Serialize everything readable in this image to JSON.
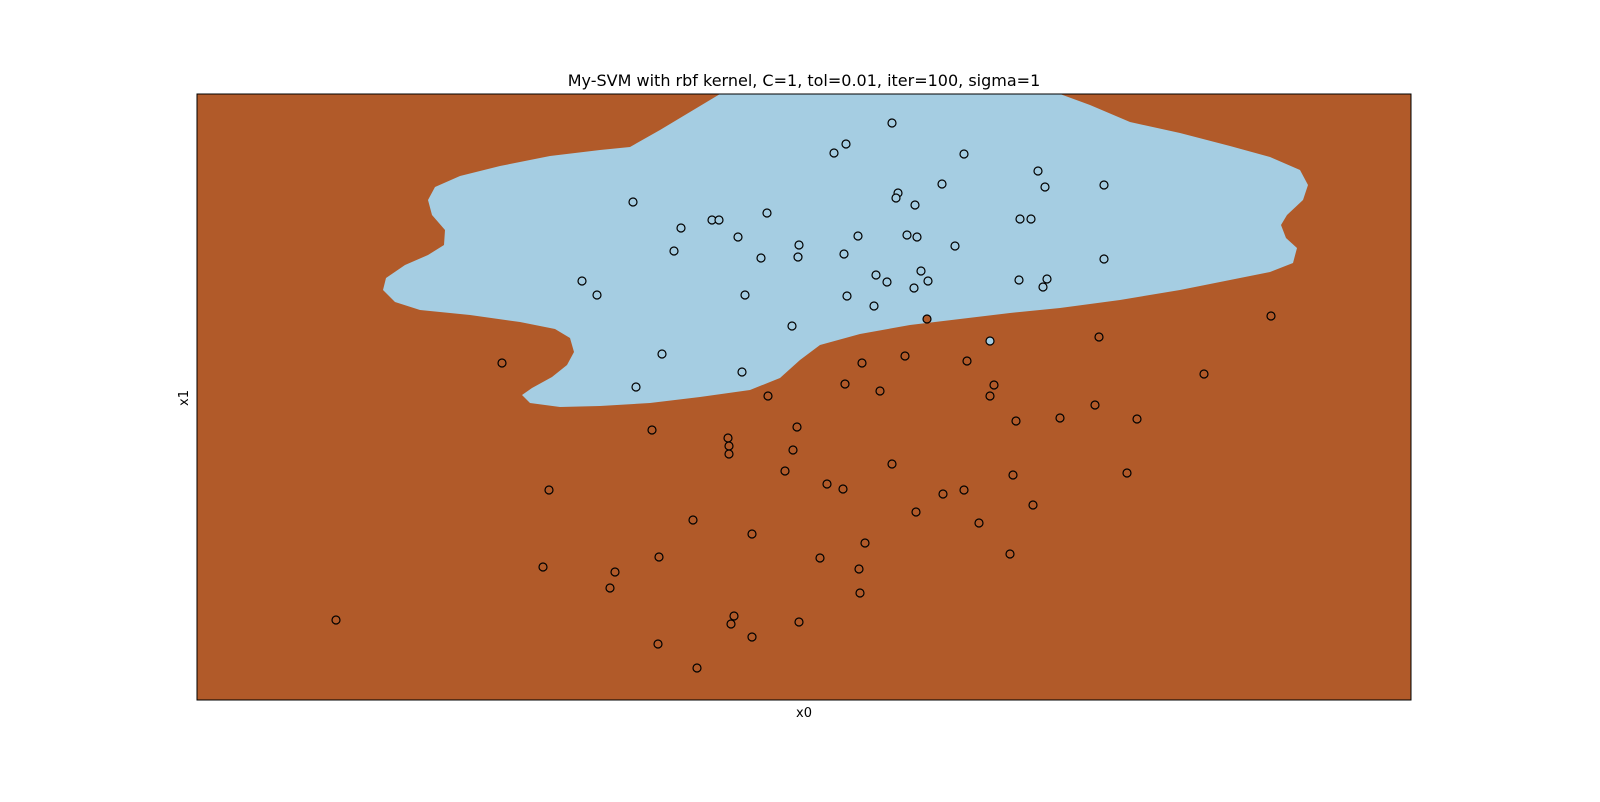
{
  "chart_data": {
    "type": "scatter",
    "title": "My-SVM with rbf kernel, C=1, tol=0.01, iter=100, sigma=1",
    "xlabel": "x0",
    "ylabel": "x1",
    "xticks": [],
    "yticks": [],
    "grid": false,
    "legend": "none",
    "background_region_color": "#b15a29",
    "decision_region_color": "#a5cde2",
    "point_fill_brown": "#b15a29",
    "point_fill_light": "#a5cde2",
    "point_edge_color": "#000000",
    "ranges": {
      "x": [
        0,
        1600
      ],
      "y": [
        -802,
        0
      ]
    },
    "decision_boundary": [
      [
        720,
        94
      ],
      [
        1060,
        94
      ],
      [
        1090,
        105
      ],
      [
        1130,
        122
      ],
      [
        1180,
        133
      ],
      [
        1230,
        146
      ],
      [
        1270,
        157
      ],
      [
        1300,
        170
      ],
      [
        1308,
        185
      ],
      [
        1303,
        200
      ],
      [
        1287,
        215
      ],
      [
        1281,
        225
      ],
      [
        1286,
        238
      ],
      [
        1297,
        248
      ],
      [
        1293,
        263
      ],
      [
        1270,
        272
      ],
      [
        1230,
        280
      ],
      [
        1180,
        290
      ],
      [
        1120,
        300
      ],
      [
        1060,
        308
      ],
      [
        1010,
        313
      ],
      [
        960,
        319
      ],
      [
        910,
        325
      ],
      [
        860,
        334
      ],
      [
        820,
        345
      ],
      [
        800,
        360
      ],
      [
        780,
        378
      ],
      [
        750,
        390
      ],
      [
        700,
        397
      ],
      [
        650,
        403
      ],
      [
        600,
        406
      ],
      [
        560,
        407
      ],
      [
        530,
        403
      ],
      [
        522,
        395
      ],
      [
        532,
        388
      ],
      [
        552,
        377
      ],
      [
        567,
        365
      ],
      [
        574,
        352
      ],
      [
        570,
        338
      ],
      [
        555,
        329
      ],
      [
        520,
        322
      ],
      [
        470,
        315
      ],
      [
        420,
        310
      ],
      [
        395,
        302
      ],
      [
        383,
        290
      ],
      [
        386,
        278
      ],
      [
        405,
        265
      ],
      [
        428,
        255
      ],
      [
        444,
        245
      ],
      [
        445,
        230
      ],
      [
        432,
        215
      ],
      [
        428,
        200
      ],
      [
        435,
        187
      ],
      [
        460,
        176
      ],
      [
        500,
        166
      ],
      [
        550,
        156
      ],
      [
        600,
        150
      ],
      [
        630,
        147
      ],
      [
        660,
        130
      ],
      [
        690,
        112
      ],
      [
        720,
        94
      ]
    ],
    "points_light": [
      [
        892,
        123
      ],
      [
        846,
        144
      ],
      [
        834,
        153
      ],
      [
        964,
        154
      ],
      [
        1038,
        171
      ],
      [
        942,
        184
      ],
      [
        1104,
        185
      ],
      [
        1045,
        187
      ],
      [
        898,
        193
      ],
      [
        896,
        198
      ],
      [
        633,
        202
      ],
      [
        915,
        205
      ],
      [
        767,
        213
      ],
      [
        712,
        220
      ],
      [
        719,
        220
      ],
      [
        1020,
        219
      ],
      [
        1031,
        219
      ],
      [
        681,
        228
      ],
      [
        738,
        237
      ],
      [
        858,
        236
      ],
      [
        907,
        235
      ],
      [
        917,
        237
      ],
      [
        799,
        245
      ],
      [
        955,
        246
      ],
      [
        674,
        251
      ],
      [
        761,
        258
      ],
      [
        798,
        257
      ],
      [
        844,
        254
      ],
      [
        1104,
        259
      ],
      [
        876,
        275
      ],
      [
        921,
        271
      ],
      [
        887,
        282
      ],
      [
        928,
        281
      ],
      [
        582,
        281
      ],
      [
        1019,
        280
      ],
      [
        1047,
        279
      ],
      [
        914,
        288
      ],
      [
        1043,
        287
      ],
      [
        597,
        295
      ],
      [
        745,
        295
      ],
      [
        847,
        296
      ],
      [
        874,
        306
      ],
      [
        792,
        326
      ],
      [
        662,
        354
      ],
      [
        742,
        372
      ],
      [
        636,
        387
      ],
      [
        990,
        341
      ]
    ],
    "points_brown": [
      [
        927,
        319
      ],
      [
        1271,
        316
      ],
      [
        1099,
        337
      ],
      [
        502,
        363
      ],
      [
        905,
        356
      ],
      [
        862,
        363
      ],
      [
        967,
        361
      ],
      [
        1204,
        374
      ],
      [
        845,
        384
      ],
      [
        994,
        385
      ],
      [
        880,
        391
      ],
      [
        768,
        396
      ],
      [
        990,
        396
      ],
      [
        1095,
        405
      ],
      [
        1060,
        418
      ],
      [
        1137,
        419
      ],
      [
        1016,
        421
      ],
      [
        652,
        430
      ],
      [
        797,
        427
      ],
      [
        728,
        438
      ],
      [
        729,
        446
      ],
      [
        793,
        450
      ],
      [
        729,
        454
      ],
      [
        892,
        464
      ],
      [
        785,
        471
      ],
      [
        1127,
        473
      ],
      [
        1013,
        475
      ],
      [
        827,
        484
      ],
      [
        549,
        490
      ],
      [
        843,
        489
      ],
      [
        964,
        490
      ],
      [
        943,
        494
      ],
      [
        1033,
        505
      ],
      [
        916,
        512
      ],
      [
        693,
        520
      ],
      [
        979,
        523
      ],
      [
        752,
        534
      ],
      [
        865,
        543
      ],
      [
        1010,
        554
      ],
      [
        659,
        557
      ],
      [
        820,
        558
      ],
      [
        543,
        567
      ],
      [
        859,
        569
      ],
      [
        615,
        572
      ],
      [
        610,
        588
      ],
      [
        860,
        593
      ],
      [
        734,
        616
      ],
      [
        336,
        620
      ],
      [
        731,
        624
      ],
      [
        799,
        622
      ],
      [
        752,
        637
      ],
      [
        658,
        644
      ],
      [
        697,
        668
      ]
    ]
  }
}
